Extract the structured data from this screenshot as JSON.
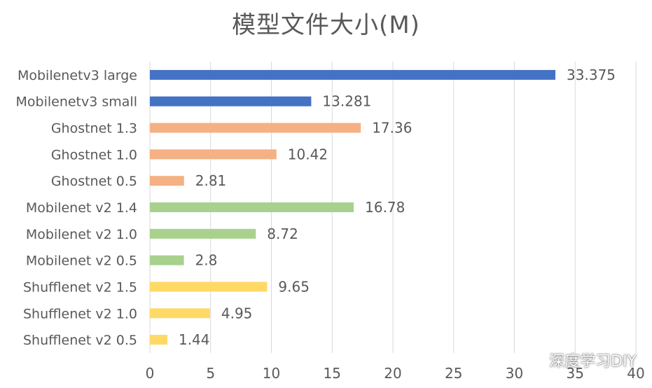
{
  "chart_data": {
    "type": "bar",
    "orientation": "horizontal",
    "title": "模型文件大小(M)",
    "categories": [
      "Mobilenetv3 large",
      "Mobilenetv3 small",
      "Ghostnet 1.3",
      "Ghostnet 1.0",
      "Ghostnet 0.5",
      "Mobilenet v2 1.4",
      "Mobilenet v2 1.0",
      "Mobilenet v2 0.5",
      "Shufflenet v2 1.5",
      "Shufflenet v2 1.0",
      "Shufflenet v2 0.5"
    ],
    "values": [
      33.375,
      13.281,
      17.36,
      10.42,
      2.81,
      16.78,
      8.72,
      2.8,
      9.65,
      4.95,
      1.44
    ],
    "data_labels": [
      "33.375",
      "13.281",
      "17.36",
      "10.42",
      "2.81",
      "16.78",
      "8.72",
      "2.8",
      "9.65",
      "4.95",
      "1.44"
    ],
    "bar_colors": [
      "#4472C4",
      "#4472C4",
      "#F4B183",
      "#F4B183",
      "#F4B183",
      "#A9D18E",
      "#A9D18E",
      "#A9D18E",
      "#FFD966",
      "#FFD966",
      "#FFD966"
    ],
    "xlim": [
      0,
      40
    ],
    "x_ticks": [
      0,
      5,
      10,
      15,
      20,
      25,
      30,
      35,
      40
    ],
    "xlabel": "",
    "ylabel": "",
    "grid": true,
    "legend": "none"
  },
  "watermark": {
    "text": "深度学习DIY",
    "icon": "wechat-icon"
  },
  "colors": {
    "text": "#595959",
    "grid": "#D9D9D9",
    "background": "#FFFFFF"
  }
}
